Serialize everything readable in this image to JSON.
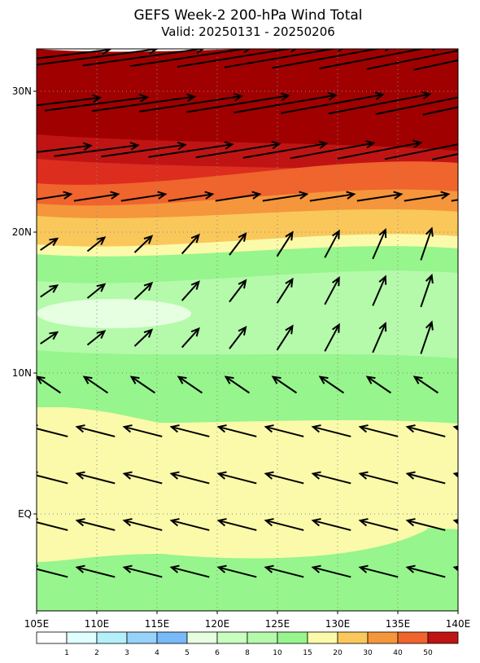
{
  "title": "GEFS Week-2 200-hPa Wind Total",
  "subtitle": "Valid: 20250131 - 20250206",
  "lon_labels": [
    "105E",
    "110E",
    "115E",
    "120E",
    "125E",
    "130E",
    "135E",
    "140E"
  ],
  "lat_labels": [
    "30N",
    "20N",
    "10N",
    "EQ"
  ],
  "colorbar_labels": [
    "1",
    "2",
    "3",
    "4",
    "5",
    "6",
    "8",
    "10",
    "15",
    "20",
    "30",
    "40",
    "50"
  ]
}
